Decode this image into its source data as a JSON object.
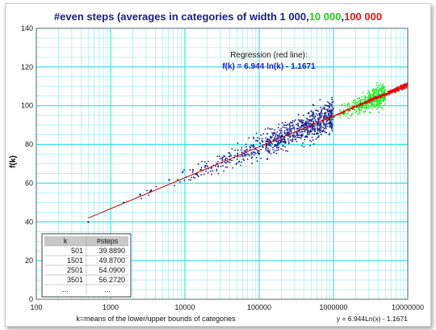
{
  "chart_data": {
    "type": "scatter",
    "title_parts": [
      {
        "text": "#even steps (averages in categories of width ",
        "color": "#1a1a8c"
      },
      {
        "text": "1 000",
        "color": "#1a1a8c"
      },
      {
        "text": ",",
        "color": "#1a1a8c"
      },
      {
        "text": "10 000",
        "color": "#22cc22"
      },
      {
        "text": ",",
        "color": "#1a1a8c"
      },
      {
        "text": "100 000",
        "color": "#ee1111"
      }
    ],
    "xlabel": "k=means of the lower/upper bounds of categories",
    "ylabel": "f(k)",
    "x_scale": "log10",
    "xlim": [
      100,
      10000000
    ],
    "ylim": [
      0,
      140
    ],
    "x_ticks": [
      100,
      1000,
      10000,
      100000,
      1000000,
      10000000
    ],
    "x_tick_labels": [
      "100",
      "1000",
      "10000",
      "100000",
      "1000000",
      "10000000"
    ],
    "y_ticks": [
      0,
      20,
      40,
      60,
      80,
      100,
      120,
      140
    ],
    "y_tick_labels": [
      "0",
      "20",
      "40",
      "60",
      "80",
      "100",
      "120",
      "140"
    ],
    "grid": true,
    "regression": {
      "label_line1": "Regression (red line):",
      "label_line2": "f(k) = 6.944 ln(k) - 1.1671",
      "a": 6.944,
      "b": -1.1671,
      "x_range": [
        500,
        10000000
      ],
      "color": "#cc0000"
    },
    "trendline_label": "y = 6.944Ln(x) - 1.1671",
    "series": [
      {
        "width": "1 000",
        "color": "#1a1a8c",
        "x_range": [
          500,
          1000000
        ],
        "count": 900,
        "spread_min": 1.0,
        "spread_max": 12.0,
        "visible_from": 500
      },
      {
        "width": "10 000",
        "color": "#22ee22",
        "x_range": [
          500000,
          5000000
        ],
        "count": 500,
        "spread_min": 3.0,
        "spread_max": 8.0
      },
      {
        "width": "100 000",
        "color": "#ee1111",
        "x_range": [
          300000,
          10000000
        ],
        "count": 380,
        "spread_min": 0.6,
        "spread_max": 1.6
      }
    ],
    "sample_points": [
      {
        "k": 501,
        "steps": 39.889
      },
      {
        "k": 1501,
        "steps": 49.87
      },
      {
        "k": 2501,
        "steps": 54.09
      },
      {
        "k": 3501,
        "steps": 56.272
      }
    ]
  },
  "table": {
    "col1_header": "k",
    "col2_header": "#steps",
    "rows": [
      {
        "k": "501",
        "steps": "39.8890"
      },
      {
        "k": "1501",
        "steps": "49.8700"
      },
      {
        "k": "2501",
        "steps": "54.0900"
      },
      {
        "k": "3501",
        "steps": "56.2720"
      },
      {
        "k": "...",
        "steps": "..."
      }
    ]
  },
  "colors": {
    "grid": "#33e0e0",
    "axis": "#555555",
    "table_header_bg": "#c8c8c8",
    "regression_text": "#111111",
    "formula_text": "#1a1acc"
  }
}
